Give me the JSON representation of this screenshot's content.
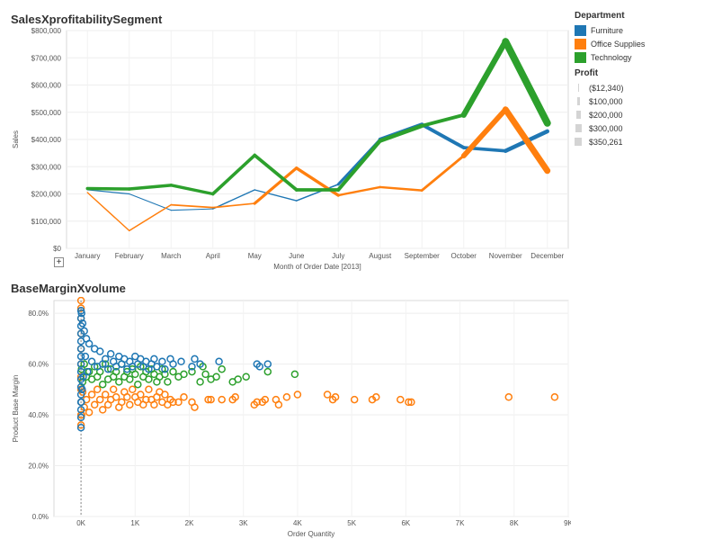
{
  "chart_data": [
    {
      "type": "line",
      "title": "SalesXprofitabilitySegment",
      "xlabel": "Month of Order Date [2013]",
      "ylabel": "Sales",
      "categories": [
        "January",
        "February",
        "March",
        "April",
        "May",
        "June",
        "July",
        "August",
        "September",
        "October",
        "November",
        "December"
      ],
      "ylim": [
        0,
        800000
      ],
      "yticks": [
        0,
        100000,
        200000,
        300000,
        400000,
        500000,
        600000,
        700000,
        800000
      ],
      "ytick_labels": [
        "$0",
        "$100,000",
        "$200,000",
        "$300,000",
        "$400,000",
        "$500,000",
        "$600,000",
        "$700,000",
        "$800,000"
      ],
      "grid": true,
      "series": [
        {
          "name": "Furniture",
          "color": "#1f77b4",
          "values": [
            215000,
            200000,
            140000,
            145000,
            215000,
            175000,
            235000,
            400000,
            455000,
            370000,
            358000,
            430000
          ],
          "profit": [
            -2000,
            -5000,
            -8000,
            -4000,
            15000,
            -12340,
            40000,
            120000,
            150000,
            90000,
            130000,
            160000
          ]
        },
        {
          "name": "Office Supplies",
          "color": "#ff7f0e",
          "values": [
            205000,
            65000,
            160000,
            150000,
            165000,
            295000,
            195000,
            225000,
            213000,
            340000,
            510000,
            285000
          ],
          "profit": [
            20000,
            -5000,
            30000,
            15000,
            25000,
            150000,
            40000,
            60000,
            50000,
            100000,
            310000,
            200000
          ]
        },
        {
          "name": "Technology",
          "color": "#2ca02c",
          "values": [
            220000,
            218000,
            232000,
            200000,
            342000,
            215000,
            215000,
            395000,
            450000,
            490000,
            760000,
            460000
          ],
          "profit": [
            100000,
            100000,
            100000,
            90000,
            120000,
            110000,
            110000,
            150000,
            130000,
            110000,
            350261,
            250000
          ]
        }
      ]
    },
    {
      "type": "scatter",
      "title": "BaseMarginXvolume",
      "xlabel": "Order Quantity",
      "ylabel": "Product Base Margin",
      "xlim": [
        -500,
        9000
      ],
      "ylim": [
        0,
        0.85
      ],
      "xticks": [
        0,
        1000,
        2000,
        3000,
        4000,
        5000,
        6000,
        7000,
        8000,
        9000
      ],
      "xtick_labels": [
        "0K",
        "1K",
        "2K",
        "3K",
        "4K",
        "5K",
        "6K",
        "7K",
        "8K",
        "9K"
      ],
      "yticks": [
        0,
        0.2,
        0.4,
        0.6,
        0.8
      ],
      "ytick_labels": [
        "0.0%",
        "20.0%",
        "40.0%",
        "60.0%",
        "80.0%"
      ],
      "series": [
        {
          "name": "Office Supplies",
          "color": "#ff7f0e",
          "points": [
            [
              8750,
              0.47
            ],
            [
              7900,
              0.47
            ],
            [
              6100,
              0.45
            ],
            [
              6050,
              0.45
            ],
            [
              5900,
              0.46
            ],
            [
              5450,
              0.47
            ],
            [
              5380,
              0.46
            ],
            [
              5050,
              0.46
            ],
            [
              4700,
              0.47
            ],
            [
              4650,
              0.46
            ],
            [
              4550,
              0.48
            ],
            [
              4000,
              0.48
            ],
            [
              3800,
              0.47
            ],
            [
              3650,
              0.44
            ],
            [
              3600,
              0.46
            ],
            [
              3400,
              0.46
            ],
            [
              3350,
              0.45
            ],
            [
              3250,
              0.45
            ],
            [
              3200,
              0.44
            ],
            [
              2850,
              0.47
            ],
            [
              2800,
              0.46
            ],
            [
              2600,
              0.46
            ],
            [
              2400,
              0.46
            ],
            [
              2350,
              0.46
            ],
            [
              2100,
              0.43
            ],
            [
              2050,
              0.45
            ],
            [
              1900,
              0.47
            ],
            [
              1800,
              0.45
            ],
            [
              1700,
              0.45
            ],
            [
              1650,
              0.46
            ],
            [
              1600,
              0.44
            ],
            [
              1550,
              0.48
            ],
            [
              1500,
              0.45
            ],
            [
              1450,
              0.49
            ],
            [
              1400,
              0.47
            ],
            [
              1350,
              0.44
            ],
            [
              1300,
              0.46
            ],
            [
              1250,
              0.5
            ],
            [
              1200,
              0.46
            ],
            [
              1150,
              0.44
            ],
            [
              1100,
              0.48
            ],
            [
              1050,
              0.45
            ],
            [
              1000,
              0.47
            ],
            [
              950,
              0.5
            ],
            [
              900,
              0.44
            ],
            [
              850,
              0.47
            ],
            [
              800,
              0.49
            ],
            [
              750,
              0.45
            ],
            [
              700,
              0.43
            ],
            [
              650,
              0.47
            ],
            [
              600,
              0.5
            ],
            [
              550,
              0.46
            ],
            [
              500,
              0.44
            ],
            [
              450,
              0.48
            ],
            [
              400,
              0.42
            ],
            [
              350,
              0.46
            ],
            [
              300,
              0.5
            ],
            [
              250,
              0.44
            ],
            [
              200,
              0.48
            ],
            [
              150,
              0.41
            ],
            [
              100,
              0.46
            ],
            [
              60,
              0.43
            ],
            [
              30,
              0.49
            ],
            [
              10,
              0.4
            ],
            [
              0,
              0.85
            ],
            [
              0,
              0.82
            ],
            [
              0,
              0.78
            ],
            [
              0,
              0.72
            ],
            [
              0,
              0.66
            ],
            [
              0,
              0.6
            ],
            [
              0,
              0.55
            ],
            [
              0,
              0.5
            ],
            [
              0,
              0.45
            ],
            [
              0,
              0.4
            ],
            [
              0,
              0.36
            ]
          ]
        },
        {
          "name": "Technology",
          "color": "#2ca02c",
          "points": [
            [
              3950,
              0.56
            ],
            [
              3450,
              0.57
            ],
            [
              3050,
              0.55
            ],
            [
              2900,
              0.54
            ],
            [
              2800,
              0.53
            ],
            [
              2600,
              0.58
            ],
            [
              2500,
              0.55
            ],
            [
              2400,
              0.54
            ],
            [
              2300,
              0.56
            ],
            [
              2250,
              0.59
            ],
            [
              2200,
              0.53
            ],
            [
              2050,
              0.57
            ],
            [
              1900,
              0.56
            ],
            [
              1800,
              0.55
            ],
            [
              1700,
              0.57
            ],
            [
              1600,
              0.53
            ],
            [
              1550,
              0.56
            ],
            [
              1500,
              0.58
            ],
            [
              1450,
              0.55
            ],
            [
              1400,
              0.53
            ],
            [
              1350,
              0.56
            ],
            [
              1300,
              0.58
            ],
            [
              1250,
              0.54
            ],
            [
              1200,
              0.57
            ],
            [
              1150,
              0.55
            ],
            [
              1100,
              0.59
            ],
            [
              1050,
              0.52
            ],
            [
              1000,
              0.56
            ],
            [
              950,
              0.58
            ],
            [
              900,
              0.54
            ],
            [
              850,
              0.57
            ],
            [
              800,
              0.55
            ],
            [
              750,
              0.6
            ],
            [
              700,
              0.53
            ],
            [
              650,
              0.57
            ],
            [
              600,
              0.55
            ],
            [
              550,
              0.58
            ],
            [
              500,
              0.54
            ],
            [
              450,
              0.6
            ],
            [
              400,
              0.52
            ],
            [
              350,
              0.57
            ],
            [
              300,
              0.55
            ],
            [
              250,
              0.59
            ],
            [
              200,
              0.54
            ],
            [
              150,
              0.57
            ],
            [
              100,
              0.55
            ],
            [
              60,
              0.6
            ],
            [
              30,
              0.53
            ],
            [
              10,
              0.58
            ]
          ]
        },
        {
          "name": "Furniture",
          "color": "#1f77b4",
          "points": [
            [
              3450,
              0.6
            ],
            [
              3300,
              0.59
            ],
            [
              3250,
              0.6
            ],
            [
              2550,
              0.61
            ],
            [
              2200,
              0.6
            ],
            [
              2100,
              0.62
            ],
            [
              2050,
              0.59
            ],
            [
              1850,
              0.61
            ],
            [
              1700,
              0.6
            ],
            [
              1650,
              0.62
            ],
            [
              1550,
              0.58
            ],
            [
              1500,
              0.61
            ],
            [
              1400,
              0.59
            ],
            [
              1350,
              0.62
            ],
            [
              1300,
              0.6
            ],
            [
              1250,
              0.58
            ],
            [
              1200,
              0.61
            ],
            [
              1150,
              0.59
            ],
            [
              1100,
              0.62
            ],
            [
              1050,
              0.6
            ],
            [
              1000,
              0.63
            ],
            [
              950,
              0.59
            ],
            [
              900,
              0.61
            ],
            [
              850,
              0.58
            ],
            [
              800,
              0.62
            ],
            [
              750,
              0.6
            ],
            [
              700,
              0.63
            ],
            [
              650,
              0.59
            ],
            [
              600,
              0.61
            ],
            [
              550,
              0.64
            ],
            [
              500,
              0.58
            ],
            [
              450,
              0.62
            ],
            [
              400,
              0.6
            ],
            [
              350,
              0.65
            ],
            [
              300,
              0.59
            ],
            [
              250,
              0.66
            ],
            [
              200,
              0.61
            ],
            [
              150,
              0.68
            ],
            [
              120,
              0.57
            ],
            [
              100,
              0.7
            ],
            [
              80,
              0.63
            ],
            [
              60,
              0.73
            ],
            [
              40,
              0.55
            ],
            [
              30,
              0.76
            ],
            [
              20,
              0.5
            ],
            [
              10,
              0.8
            ],
            [
              5,
              0.45
            ],
            [
              0,
              0.81
            ],
            [
              0,
              0.78
            ],
            [
              0,
              0.75
            ],
            [
              0,
              0.72
            ],
            [
              0,
              0.69
            ],
            [
              0,
              0.66
            ],
            [
              0,
              0.63
            ],
            [
              0,
              0.6
            ],
            [
              0,
              0.57
            ],
            [
              0,
              0.54
            ],
            [
              0,
              0.51
            ],
            [
              0,
              0.48
            ],
            [
              0,
              0.45
            ],
            [
              0,
              0.42
            ],
            [
              0,
              0.39
            ],
            [
              0,
              0.35
            ]
          ]
        }
      ]
    }
  ],
  "legend": {
    "dept_title": "Department",
    "departments": [
      {
        "label": "Furniture",
        "color": "#1f77b4"
      },
      {
        "label": "Office Supplies",
        "color": "#ff7f0e"
      },
      {
        "label": "Technology",
        "color": "#2ca02c"
      }
    ],
    "profit_title": "Profit",
    "profit_items": [
      "($12,340)",
      "$100,000",
      "$200,000",
      "$300,000",
      "$350,261"
    ]
  },
  "controls": {
    "expand_label": "+"
  }
}
